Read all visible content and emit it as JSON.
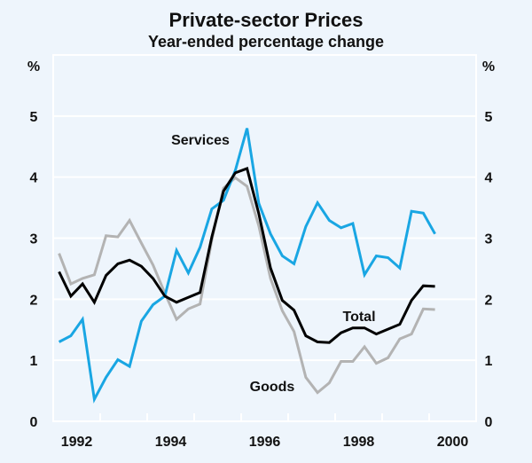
{
  "chart_data": {
    "type": "line",
    "title": "Private-sector Prices",
    "subtitle": "Year-ended percentage change",
    "ylabel_left": "%",
    "ylabel_right": "%",
    "xlabel": "",
    "xlim": [
      1992,
      2001
    ],
    "ylim": [
      0,
      6
    ],
    "yticks": [
      0,
      1,
      2,
      3,
      4,
      5
    ],
    "xtick_labels": [
      "1992",
      "1994",
      "1996",
      "1998",
      "2000"
    ],
    "grid": true,
    "legend": "inline labels",
    "x": [
      "1992Q1",
      "1992Q2",
      "1992Q3",
      "1992Q4",
      "1993Q1",
      "1993Q2",
      "1993Q3",
      "1993Q4",
      "1994Q1",
      "1994Q2",
      "1994Q3",
      "1994Q4",
      "1995Q1",
      "1995Q2",
      "1995Q3",
      "1995Q4",
      "1996Q1",
      "1996Q2",
      "1996Q3",
      "1996Q4",
      "1997Q1",
      "1997Q2",
      "1997Q3",
      "1997Q4",
      "1998Q1",
      "1998Q2",
      "1998Q3",
      "1998Q4",
      "1999Q1",
      "1999Q2",
      "1999Q3",
      "1999Q4",
      "2000Q1"
    ],
    "series": [
      {
        "name": "Services",
        "color": "#19a6e3",
        "values": [
          1.3,
          1.4,
          1.67,
          0.36,
          0.72,
          1.01,
          0.9,
          1.64,
          1.91,
          2.05,
          2.8,
          2.43,
          2.85,
          3.48,
          3.62,
          4.11,
          4.8,
          3.57,
          3.07,
          2.71,
          2.58,
          3.19,
          3.58,
          3.29,
          3.17,
          3.24,
          2.4,
          2.71,
          2.68,
          2.51,
          3.44,
          3.41,
          3.07
        ]
      },
      {
        "name": "Goods",
        "color": "#b3b3b3",
        "values": [
          2.75,
          2.25,
          2.34,
          2.4,
          3.04,
          3.02,
          3.29,
          2.92,
          2.56,
          2.1,
          1.67,
          1.84,
          1.92,
          2.97,
          3.82,
          3.99,
          3.85,
          3.2,
          2.34,
          1.81,
          1.47,
          0.72,
          0.47,
          0.63,
          0.98,
          0.98,
          1.22,
          0.95,
          1.04,
          1.35,
          1.43,
          1.84,
          1.83
        ]
      },
      {
        "name": "Total",
        "color": "#000000",
        "values": [
          2.45,
          2.05,
          2.25,
          1.95,
          2.39,
          2.58,
          2.64,
          2.54,
          2.34,
          2.05,
          1.95,
          2.03,
          2.11,
          3.02,
          3.77,
          4.07,
          4.14,
          3.4,
          2.51,
          1.98,
          1.82,
          1.4,
          1.3,
          1.29,
          1.45,
          1.53,
          1.53,
          1.43,
          1.51,
          1.59,
          1.98,
          2.22,
          2.21
        ]
      }
    ]
  }
}
